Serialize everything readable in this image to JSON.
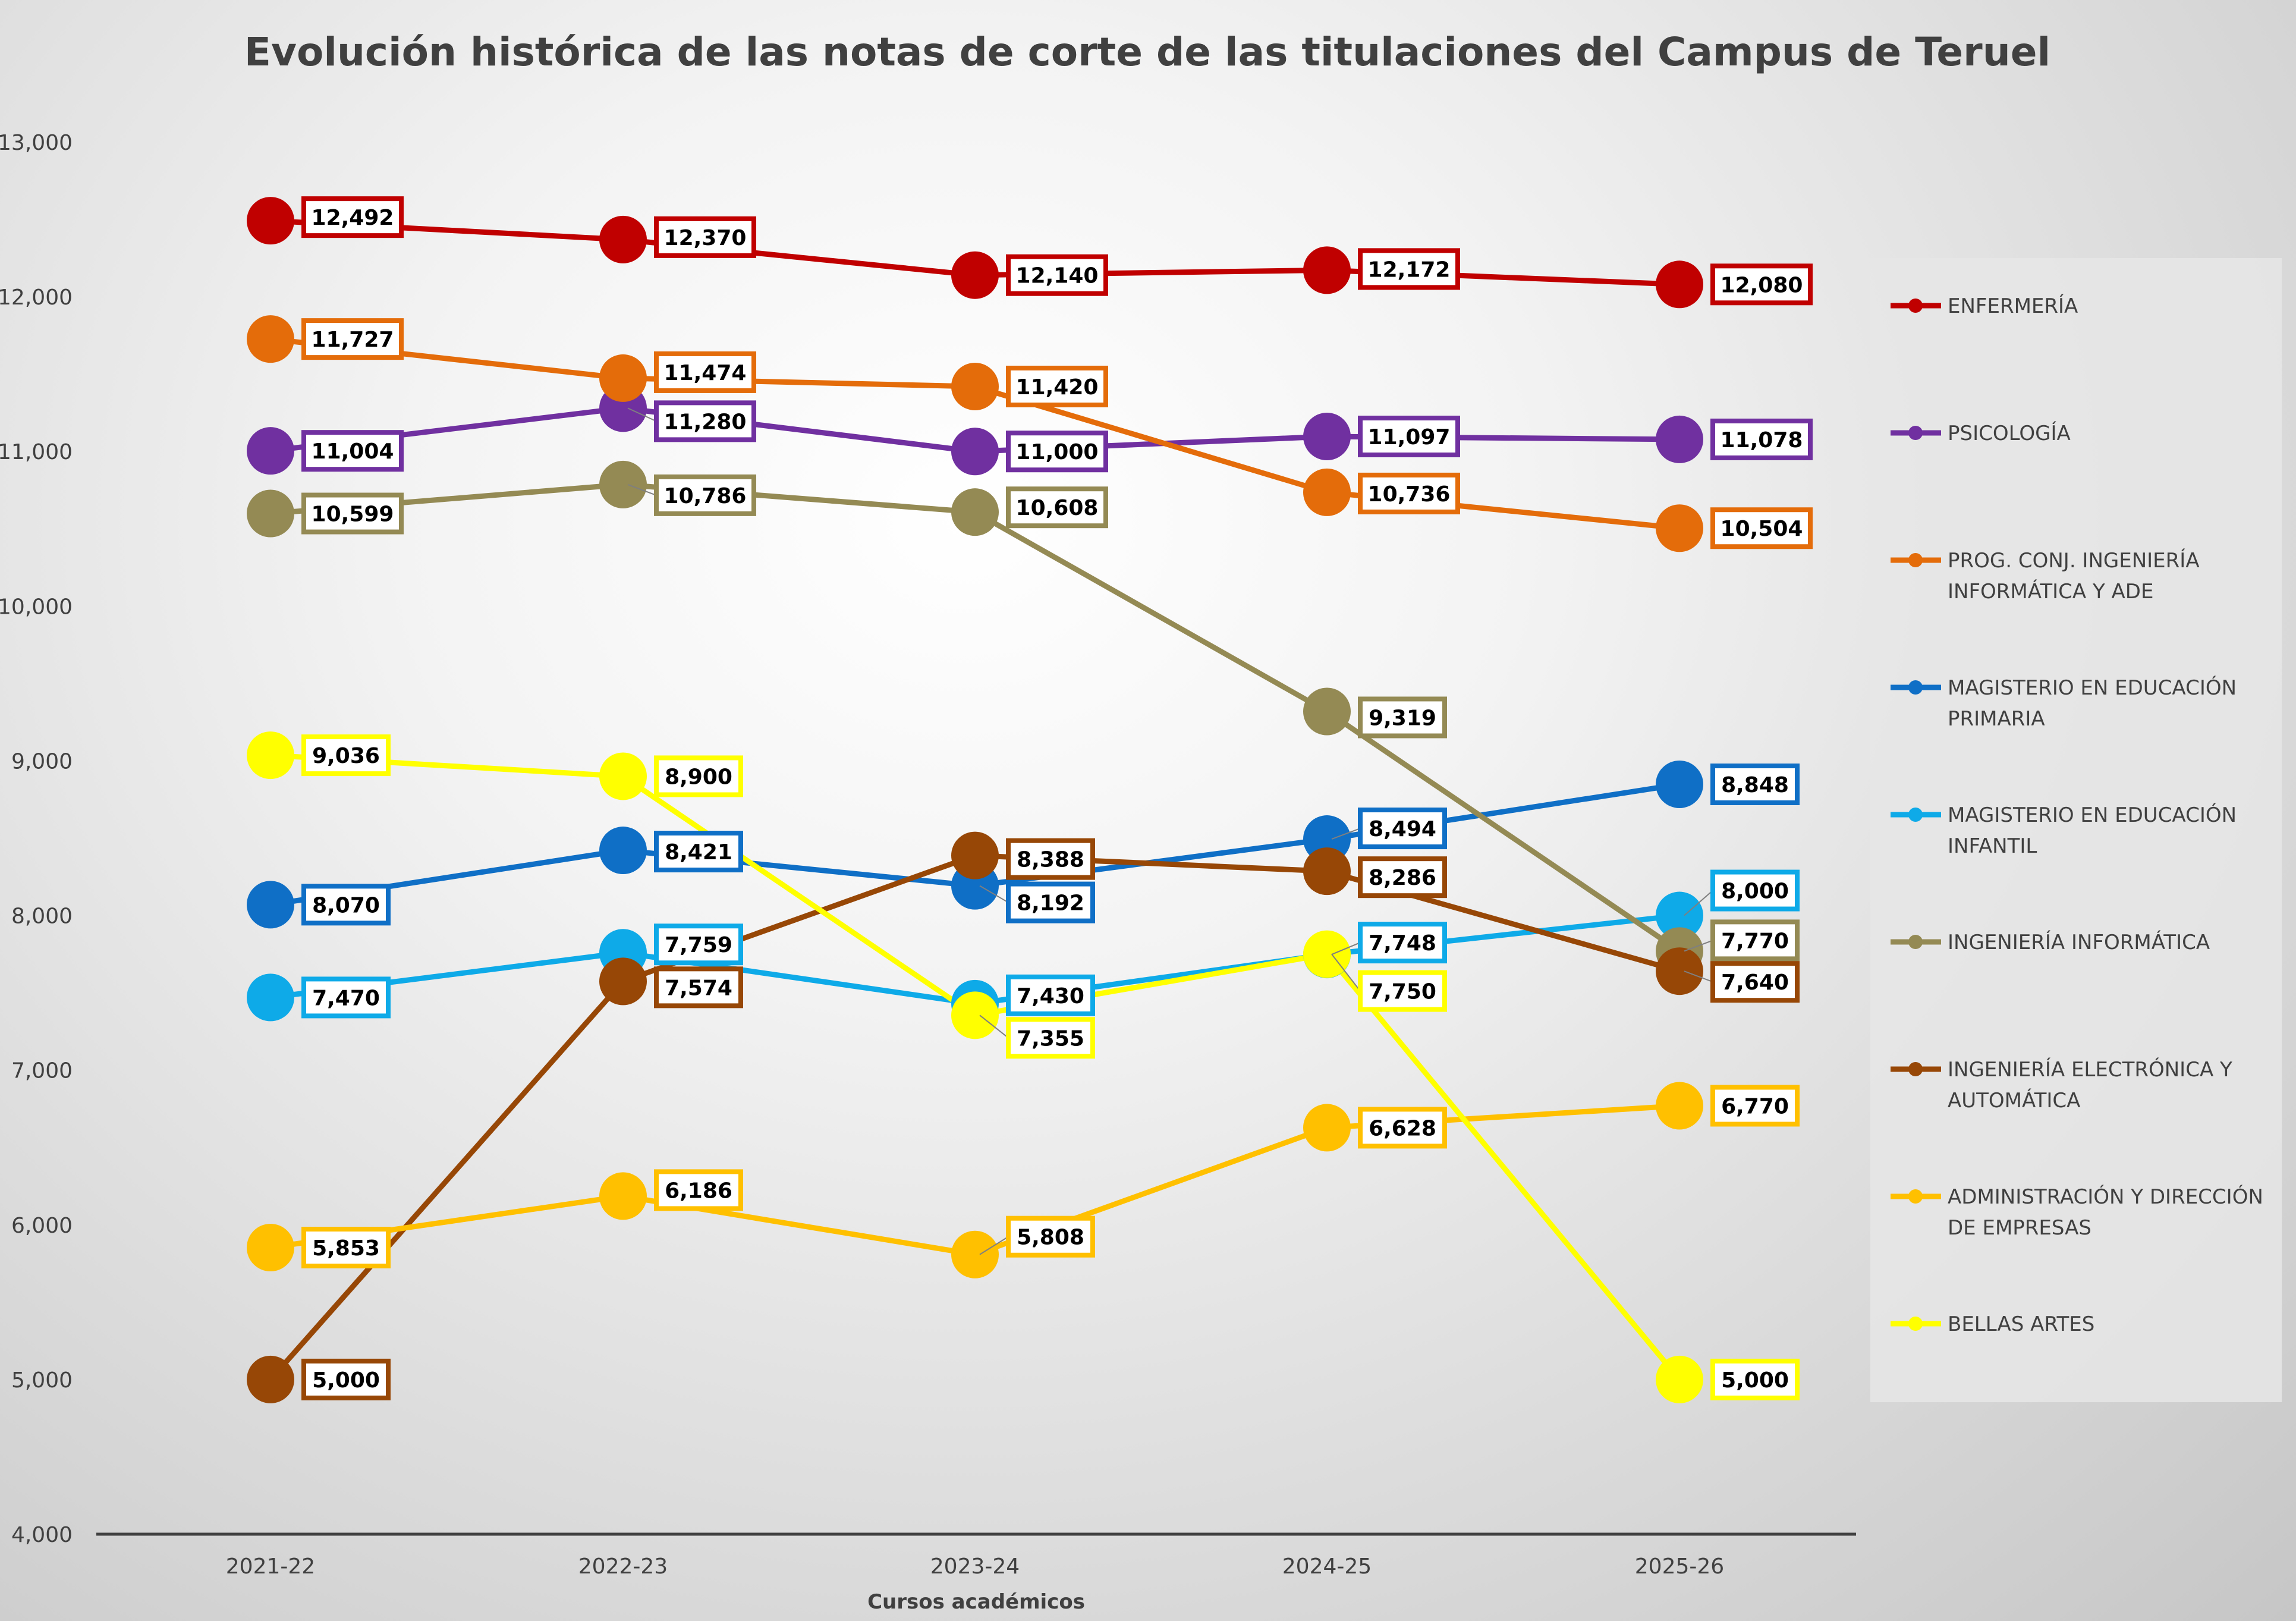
{
  "chart_data": {
    "type": "line",
    "title": "Evolución histórica de las notas de corte de las titulaciones del Campus de Teruel",
    "xlabel": "Cursos académicos",
    "ylabel": "",
    "categories": [
      "2021-22",
      "2022-23",
      "2023-24",
      "2024-25",
      "2025-26"
    ],
    "ylim": [
      4000,
      13000
    ],
    "yticks": [
      4000,
      5000,
      6000,
      7000,
      8000,
      9000,
      10000,
      11000,
      12000,
      13000
    ],
    "ytick_labels": [
      "4,000",
      "5,000",
      "6,000",
      "7,000",
      "8,000",
      "9,000",
      "10,000",
      "11,000",
      "12,000",
      "13,000"
    ],
    "grid": false,
    "legend_position": "right",
    "series": [
      {
        "name": "ENFERMERÍA",
        "legend_lines": [
          "ENFERMERÍA"
        ],
        "color": "#C00000",
        "values": [
          12492,
          12370,
          12140,
          12172,
          12080
        ],
        "labels": [
          "12,492",
          "12,370",
          "12,140",
          "12,172",
          "12,080"
        ]
      },
      {
        "name": "PSICOLOGÍA",
        "legend_lines": [
          "PSICOLOGÍA"
        ],
        "color": "#7030A0",
        "values": [
          11004,
          11280,
          11000,
          11097,
          11078
        ],
        "labels": [
          "11,004",
          "11,280",
          "11,000",
          "11,097",
          "11,078"
        ]
      },
      {
        "name": "PROG. CONJ. INGENIERÍA INFORMÁTICA Y ADE",
        "legend_lines": [
          "PROG. CONJ. INGENIERÍA",
          "INFORMÁTICA Y ADE"
        ],
        "color": "#E46C0A",
        "values": [
          11727,
          11474,
          11420,
          10736,
          10504
        ],
        "labels": [
          "11,727",
          "11,474",
          "11,420",
          "10,736",
          "10,504"
        ]
      },
      {
        "name": "MAGISTERIO EN EDUCACIÓN PRIMARIA",
        "legend_lines": [
          "MAGISTERIO EN EDUCACIÓN",
          "PRIMARIA"
        ],
        "color": "#0F6FC6",
        "values": [
          8070,
          8421,
          8192,
          8494,
          8848
        ],
        "labels": [
          "8,070",
          "8,421",
          "8,192",
          "8,494",
          "8,848"
        ]
      },
      {
        "name": "MAGISTERIO EN EDUCACIÓN INFANTIL",
        "legend_lines": [
          "MAGISTERIO EN EDUCACIÓN",
          "INFANTIL"
        ],
        "color": "#0EAAE8",
        "values": [
          7470,
          7759,
          7430,
          7748,
          8000
        ],
        "labels": [
          "7,470",
          "7,759",
          "7,430",
          "7,748",
          "8,000"
        ]
      },
      {
        "name": "INGENIERÍA INFORMÁTICA",
        "legend_lines": [
          "INGENIERÍA INFORMÁTICA"
        ],
        "color": "#948A54",
        "values": [
          10599,
          10786,
          10608,
          9319,
          7770
        ],
        "labels": [
          "10,599",
          "10,786",
          "10,608",
          "9,319",
          "7,770"
        ]
      },
      {
        "name": "INGENIERÍA ELECTRÓNICA Y AUTOMÁTICA",
        "legend_lines": [
          "INGENIERÍA ELECTRÓNICA Y",
          "AUTOMÁTICA"
        ],
        "color": "#974706",
        "values": [
          5000,
          7574,
          8388,
          8286,
          7640
        ],
        "labels": [
          "5,000",
          "7,574",
          "8,388",
          "8,286",
          "7,640"
        ]
      },
      {
        "name": "ADMINISTRACIÓN Y DIRECCIÓN DE EMPRESAS",
        "legend_lines": [
          "ADMINISTRACIÓN Y DIRECCIÓN",
          "DE EMPRESAS"
        ],
        "color": "#FFC000",
        "values": [
          5853,
          6186,
          5808,
          6628,
          6770
        ],
        "labels": [
          "5,853",
          "6,186",
          "5,808",
          "6,628",
          "6,770"
        ]
      },
      {
        "name": "BELLAS ARTES",
        "legend_lines": [
          "BELLAS ARTES"
        ],
        "color": "#FFFF00",
        "values": [
          9036,
          8900,
          7355,
          7750,
          5000
        ],
        "labels": [
          "9,036",
          "8,900",
          "7,355",
          "7,750",
          "5,000"
        ]
      }
    ]
  }
}
